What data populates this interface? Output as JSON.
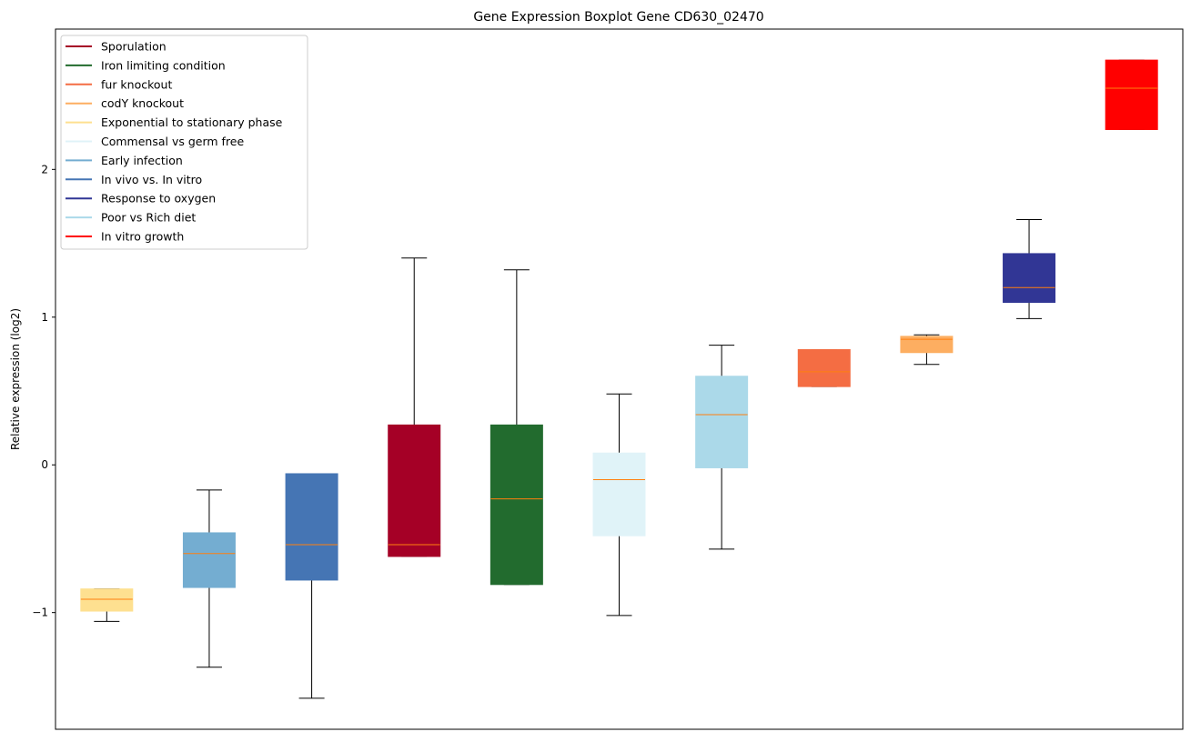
{
  "chart_data": {
    "type": "boxplot",
    "title": "Gene Expression Boxplot Gene CD630_02470",
    "xlabel": "",
    "ylabel": "Relative expression (log2)",
    "ylim": [
      -1.79,
      2.95
    ],
    "yticks": [
      -1,
      0,
      1,
      2
    ],
    "grid": false,
    "legend_placement": "top-left",
    "median_color": "#ff7f0e",
    "series": [
      {
        "name": "Exponential to stationary phase",
        "color": "#fee090",
        "whislo": -1.06,
        "q1": -0.99,
        "med": -0.91,
        "q3": -0.84,
        "whishi": -0.84
      },
      {
        "name": "Early infection",
        "color": "#74add1",
        "whislo": -1.37,
        "q1": -0.83,
        "med": -0.6,
        "q3": -0.46,
        "whishi": -0.17
      },
      {
        "name": "In vivo vs. In vitro",
        "color": "#4575b4",
        "whislo": -1.58,
        "q1": -0.78,
        "med": -0.54,
        "q3": -0.06,
        "whishi": -0.06
      },
      {
        "name": "Sporulation",
        "color": "#a50026",
        "whislo": -0.62,
        "q1": -0.62,
        "med": -0.54,
        "q3": 0.27,
        "whishi": 1.4
      },
      {
        "name": "Iron limiting condition",
        "color": "#226b2e",
        "whislo": -0.81,
        "q1": -0.81,
        "med": -0.23,
        "q3": 0.27,
        "whishi": 1.32
      },
      {
        "name": "Commensal vs germ free",
        "color": "#e0f3f8",
        "whislo": -1.02,
        "q1": -0.48,
        "med": -0.1,
        "q3": 0.08,
        "whishi": 0.48
      },
      {
        "name": "Poor vs Rich diet",
        "color": "#abd9e9",
        "whislo": -0.57,
        "q1": -0.02,
        "med": 0.34,
        "q3": 0.6,
        "whishi": 0.81
      },
      {
        "name": "fur knockout",
        "color": "#f46d43",
        "whislo": 0.53,
        "q1": 0.53,
        "med": 0.63,
        "q3": 0.78,
        "whishi": 0.78
      },
      {
        "name": "codY knockout",
        "color": "#fdae61",
        "whislo": 0.68,
        "q1": 0.76,
        "med": 0.85,
        "q3": 0.87,
        "whishi": 0.88
      },
      {
        "name": "Response to oxygen",
        "color": "#313695",
        "whislo": 0.99,
        "q1": 1.1,
        "med": 1.2,
        "q3": 1.43,
        "whishi": 1.66
      },
      {
        "name": "In vitro growth",
        "color": "#ff0000",
        "whislo": 2.27,
        "q1": 2.27,
        "med": 2.55,
        "q3": 2.74,
        "whishi": 2.74
      }
    ],
    "legend": [
      {
        "label": "Sporulation",
        "color": "#a50026"
      },
      {
        "label": "Iron limiting condition",
        "color": "#226b2e"
      },
      {
        "label": "fur knockout",
        "color": "#f46d43"
      },
      {
        "label": "codY knockout",
        "color": "#fdae61"
      },
      {
        "label": "Exponential to stationary phase",
        "color": "#fee090"
      },
      {
        "label": "Commensal vs germ free",
        "color": "#e0f3f8"
      },
      {
        "label": "Early infection",
        "color": "#74add1"
      },
      {
        "label": "In vivo vs. In vitro",
        "color": "#4575b4"
      },
      {
        "label": "Response to oxygen",
        "color": "#313695"
      },
      {
        "label": "Poor vs Rich diet",
        "color": "#abd9e9"
      },
      {
        "label": "In vitro growth",
        "color": "#ff0000"
      }
    ]
  }
}
